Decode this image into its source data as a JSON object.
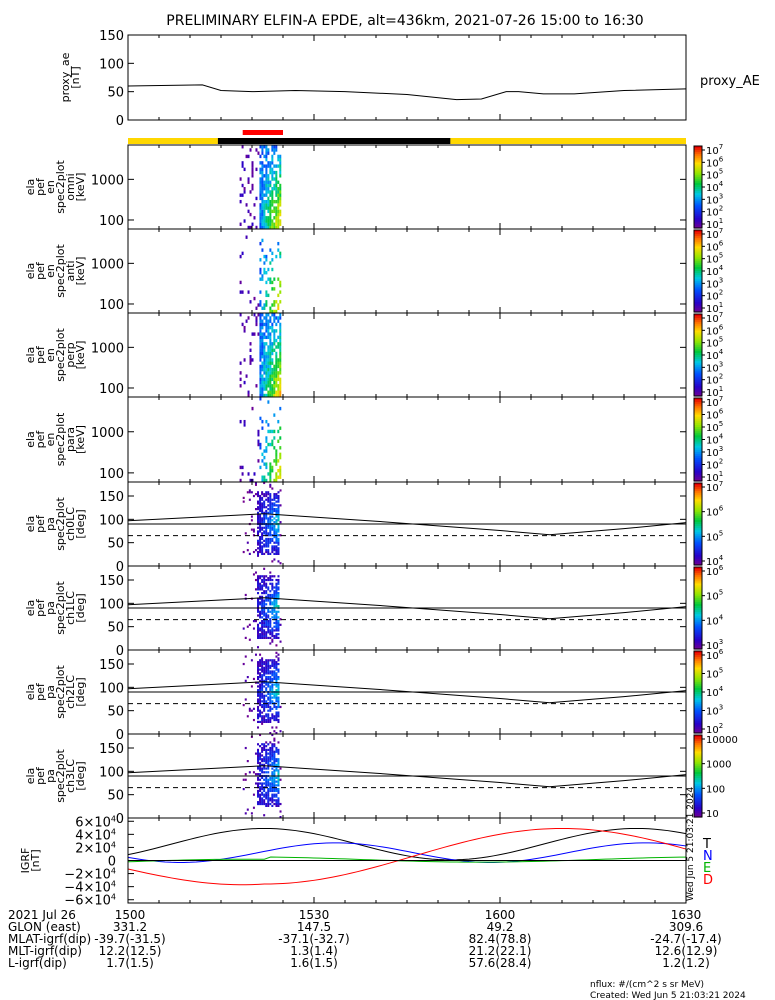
{
  "chart_data": {
    "type": "multi_panel_spectrogram",
    "title": "PRELIMINARY ELFIN-A EPDE, alt=436km, 2021-07-26 15:00 to 16:30",
    "time_range": [
      "1500",
      "1630"
    ],
    "time_ticks": [
      "1500",
      "1530",
      "1600",
      "1630"
    ],
    "time_tick_minutes": [
      0,
      30,
      60,
      90
    ],
    "panels": [
      {
        "id": "proxy_ae",
        "type": "line",
        "ylabel": [
          "proxy_ae",
          "[nT]"
        ],
        "right_label": "proxy_AE",
        "yticks": [
          "0",
          "50",
          "100",
          "150"
        ],
        "ylim": [
          0,
          150
        ],
        "series": [
          {
            "name": "proxy_AE",
            "t": [
              0,
              12,
              15,
              20,
              27,
              35,
              45,
              53,
              57,
              61,
              63,
              67,
              72,
              80,
              90
            ],
            "values": [
              60,
              62,
              52,
              50,
              52,
              50,
              45,
              36,
              37,
              50,
              50,
              46,
              46,
              52,
              55
            ]
          }
        ]
      },
      {
        "id": "omni",
        "type": "spectrogram",
        "ylabel": [
          "ela",
          "pef",
          "en",
          "spec2plot",
          "omni",
          "[keV]"
        ],
        "yticks": [
          "100",
          "1000"
        ],
        "colorbar_label": "nflux",
        "colorbar_ticks": [
          "10",
          "10",
          "10",
          "10",
          "10",
          "10",
          "10"
        ],
        "colorbar_exponents": [
          "1",
          "2",
          "3",
          "4",
          "5",
          "6",
          "7"
        ]
      },
      {
        "id": "anti",
        "type": "spectrogram",
        "ylabel": [
          "ela",
          "pef",
          "en",
          "spec2plot",
          "anti",
          "[keV]"
        ],
        "yticks": [
          "100",
          "1000"
        ],
        "colorbar_label": "nflux",
        "colorbar_ticks": [
          "10",
          "10",
          "10",
          "10",
          "10",
          "10",
          "10"
        ],
        "colorbar_exponents": [
          "1",
          "2",
          "3",
          "4",
          "5",
          "6",
          "7"
        ]
      },
      {
        "id": "perp",
        "type": "spectrogram",
        "ylabel": [
          "ela",
          "pef",
          "en",
          "spec2plot",
          "perp",
          "[keV]"
        ],
        "yticks": [
          "100",
          "1000"
        ],
        "colorbar_label": "nflux",
        "colorbar_ticks": [
          "10",
          "10",
          "10",
          "10",
          "10",
          "10",
          "10"
        ],
        "colorbar_exponents": [
          "1",
          "2",
          "3",
          "4",
          "5",
          "6",
          "7"
        ]
      },
      {
        "id": "para",
        "type": "spectrogram",
        "ylabel": [
          "ela",
          "pef",
          "en",
          "spec2plot",
          "para",
          "[keV]"
        ],
        "yticks": [
          "100",
          "1000"
        ],
        "colorbar_label": "nflux",
        "colorbar_ticks": [
          "10",
          "10",
          "10",
          "10",
          "10",
          "10",
          "10"
        ],
        "colorbar_exponents": [
          "1",
          "2",
          "3",
          "4",
          "5",
          "6",
          "7"
        ]
      },
      {
        "id": "ch0LC",
        "type": "pitch_angle",
        "ylabel": [
          "ela",
          "pef",
          "pa",
          "spec2plot",
          "ch0LC",
          "[deg]"
        ],
        "yticks": [
          "0",
          "50",
          "100",
          "150"
        ],
        "ylim": [
          0,
          180
        ],
        "colorbar_label": "nflux",
        "colorbar_ticks": [
          "10",
          "10",
          "10",
          "10"
        ],
        "colorbar_exponents": [
          "4",
          "5",
          "6",
          "7"
        ]
      },
      {
        "id": "ch1LC",
        "type": "pitch_angle",
        "ylabel": [
          "ela",
          "pef",
          "pa",
          "spec2plot",
          "ch1LC",
          "[deg]"
        ],
        "yticks": [
          "0",
          "50",
          "100",
          "150"
        ],
        "ylim": [
          0,
          180
        ],
        "colorbar_label": "nflux",
        "colorbar_ticks": [
          "10",
          "10",
          "10",
          "10"
        ],
        "colorbar_exponents": [
          "3",
          "4",
          "5",
          "6"
        ]
      },
      {
        "id": "ch2LC",
        "type": "pitch_angle",
        "ylabel": [
          "ela",
          "pef",
          "pa",
          "spec2plot",
          "ch2LC",
          "[deg]"
        ],
        "yticks": [
          "0",
          "50",
          "100",
          "150"
        ],
        "ylim": [
          0,
          180
        ],
        "colorbar_label": "nflux",
        "colorbar_ticks": [
          "10",
          "10",
          "10",
          "10",
          "10"
        ],
        "colorbar_exponents": [
          "2",
          "3",
          "4",
          "5",
          "6"
        ]
      },
      {
        "id": "ch3LC",
        "type": "pitch_angle",
        "ylabel": [
          "ela",
          "pef",
          "pa",
          "spec2plot",
          "ch3LC",
          "[deg]"
        ],
        "yticks": [
          "0",
          "50",
          "100",
          "150"
        ],
        "ylim": [
          0,
          180
        ],
        "colorbar_label": "nflux",
        "colorbar_ticks": [
          "10",
          "100",
          "1000",
          "10000"
        ],
        "colorbar_exponents": [
          "",
          "",
          "",
          ""
        ]
      },
      {
        "id": "igrf",
        "type": "line",
        "ylabel": [
          "IGRF",
          "[nT]"
        ],
        "yticks_mantissa": [
          "−6×10",
          "−4×10",
          "−2×10",
          "0",
          "2×10",
          "4×10",
          "6×10"
        ],
        "yticks_exponent": [
          "4",
          "4",
          "4",
          "",
          "4",
          "4",
          "4"
        ],
        "ylim": [
          -65000,
          65000
        ],
        "legend": [
          "T",
          "N",
          "E",
          "D"
        ],
        "legend_colors": [
          "#000000",
          "#0000ff",
          "#00b400",
          "#ff0000"
        ],
        "side_text": "Wed Jun 5 21:03:21 2024"
      }
    ],
    "footer": {
      "rows": [
        [
          "2021 Jul 26",
          "1500",
          "1530",
          "1600",
          "1630"
        ],
        [
          "GLON (east)",
          "331.2",
          "147.5",
          "49.2",
          "309.6"
        ],
        [
          "MLAT-igrf(dip)",
          "-39.7(-31.5)",
          "-37.1(-32.7)",
          "82.4(78.8)",
          "-24.7(-17.4)"
        ],
        [
          "MLT-igrf(dip)",
          "12.2(12.5)",
          "1.3(1.4)",
          "21.2(22.1)",
          "12.6(12.9)"
        ],
        [
          "L-igrf(dip)",
          "1.7(1.5)",
          "1.6(1.5)",
          "57.6(28.4)",
          "1.2(1.2)"
        ]
      ],
      "note1": "nflux: #/(cm^2 s sr MeV)",
      "note2": "Created: Wed Jun  5 21:03:21 2024"
    },
    "status_bar": {
      "colors": [
        "#ffd700",
        "#000000",
        "#ffd700"
      ],
      "segments_minutes": [
        [
          0,
          14.5
        ],
        [
          14.5,
          52
        ],
        [
          52,
          90
        ]
      ],
      "red_marker_minutes": [
        18.5,
        25
      ]
    }
  }
}
